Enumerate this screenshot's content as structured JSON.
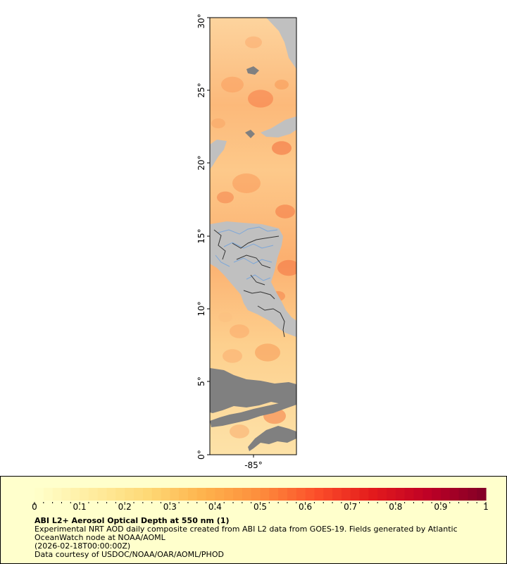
{
  "map": {
    "lat_ticks": [
      "0°",
      "5°",
      "10°",
      "15°",
      "20°",
      "25°",
      "30°"
    ],
    "lon_ticks": [
      "-85°"
    ],
    "colors": {
      "land": "#c0c0c0",
      "nodata": "#808080",
      "border": "#333333",
      "river": "#7da7d9",
      "frame": "#000000"
    }
  },
  "legend": {
    "colorbar_ticks": [
      "0",
      "0.1",
      "0.2",
      "0.3",
      "0.4",
      "0.5",
      "0.6",
      "0.7",
      "0.8",
      "0.9",
      "1"
    ],
    "colormap": [
      "#ffffcc",
      "#ffeda0",
      "#fed976",
      "#feb24c",
      "#fd8d3c",
      "#fc4e2a",
      "#e31a1c",
      "#bd0026",
      "#800026"
    ],
    "title": "ABI L2+ Aerosol Optical Depth at 550 nm (1)",
    "description": "Experimental NRT AOD daily composite created from ABI L2 data from GOES-19. Fields generated by Atlantic OceanWatch node at NOAA/AOML",
    "time": "(2026-02-18T00:00:00Z)",
    "credit": "Data courtesy of USDOC/NOAA/OAR/AOML/PHOD",
    "background": "#ffffcc"
  }
}
